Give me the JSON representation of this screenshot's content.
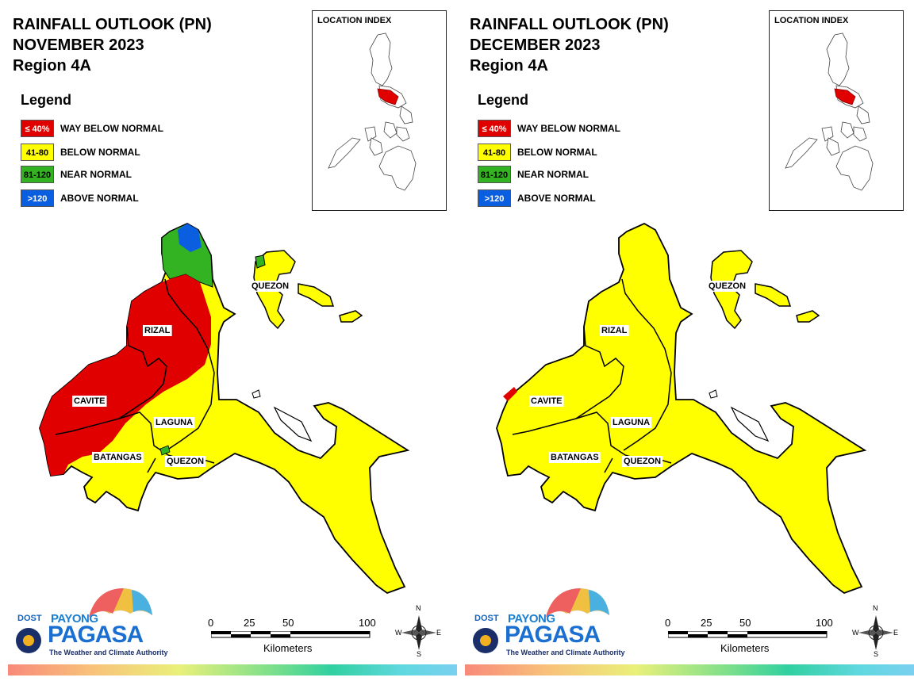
{
  "maps": [
    {
      "title_lines": [
        "RAINFALL OUTLOOK (PN)",
        "NOVEMBER 2023",
        "Region 4A"
      ],
      "province_labels": [
        "QUEZON",
        "RIZAL",
        "CAVITE",
        "LAGUNA",
        "BATANGAS",
        "QUEZON"
      ],
      "zones": [
        "way-below-normal",
        "below-normal",
        "near-normal",
        "above-normal"
      ]
    },
    {
      "title_lines": [
        "RAINFALL OUTLOOK (PN)",
        "DECEMBER 2023",
        "Region 4A"
      ],
      "province_labels": [
        "QUEZON",
        "RIZAL",
        "CAVITE",
        "LAGUNA",
        "BATANGAS",
        "QUEZON"
      ],
      "zones": [
        "below-normal",
        "way-below-normal"
      ]
    }
  ],
  "legend": {
    "title": "Legend",
    "items": [
      {
        "range": "≤ 40%",
        "label": "WAY BELOW NORMAL",
        "color": "#e00000",
        "text_color": "#ffffff"
      },
      {
        "range": "41-80",
        "label": "BELOW NORMAL",
        "color": "#ffff00",
        "text_color": "#000000"
      },
      {
        "range": "81-120",
        "label": "NEAR NORMAL",
        "color": "#33b321",
        "text_color": "#000000"
      },
      {
        "range": ">120",
        "label": "ABOVE NORMAL",
        "color": "#0a5fe0",
        "text_color": "#ffffff"
      }
    ]
  },
  "location_index": {
    "title": "LOCATION INDEX",
    "highlight_color": "#e00000"
  },
  "scale_bar": {
    "ticks": [
      "0",
      "25",
      "50",
      "100"
    ],
    "unit": "Kilometers"
  },
  "compass": {
    "n": "N",
    "s": "S",
    "e": "E",
    "w": "W"
  },
  "logo": {
    "dost": "DOST",
    "payong": "PAYONG",
    "pagasa": "PAGASA",
    "tagline": "The Weather and Climate Authority"
  }
}
